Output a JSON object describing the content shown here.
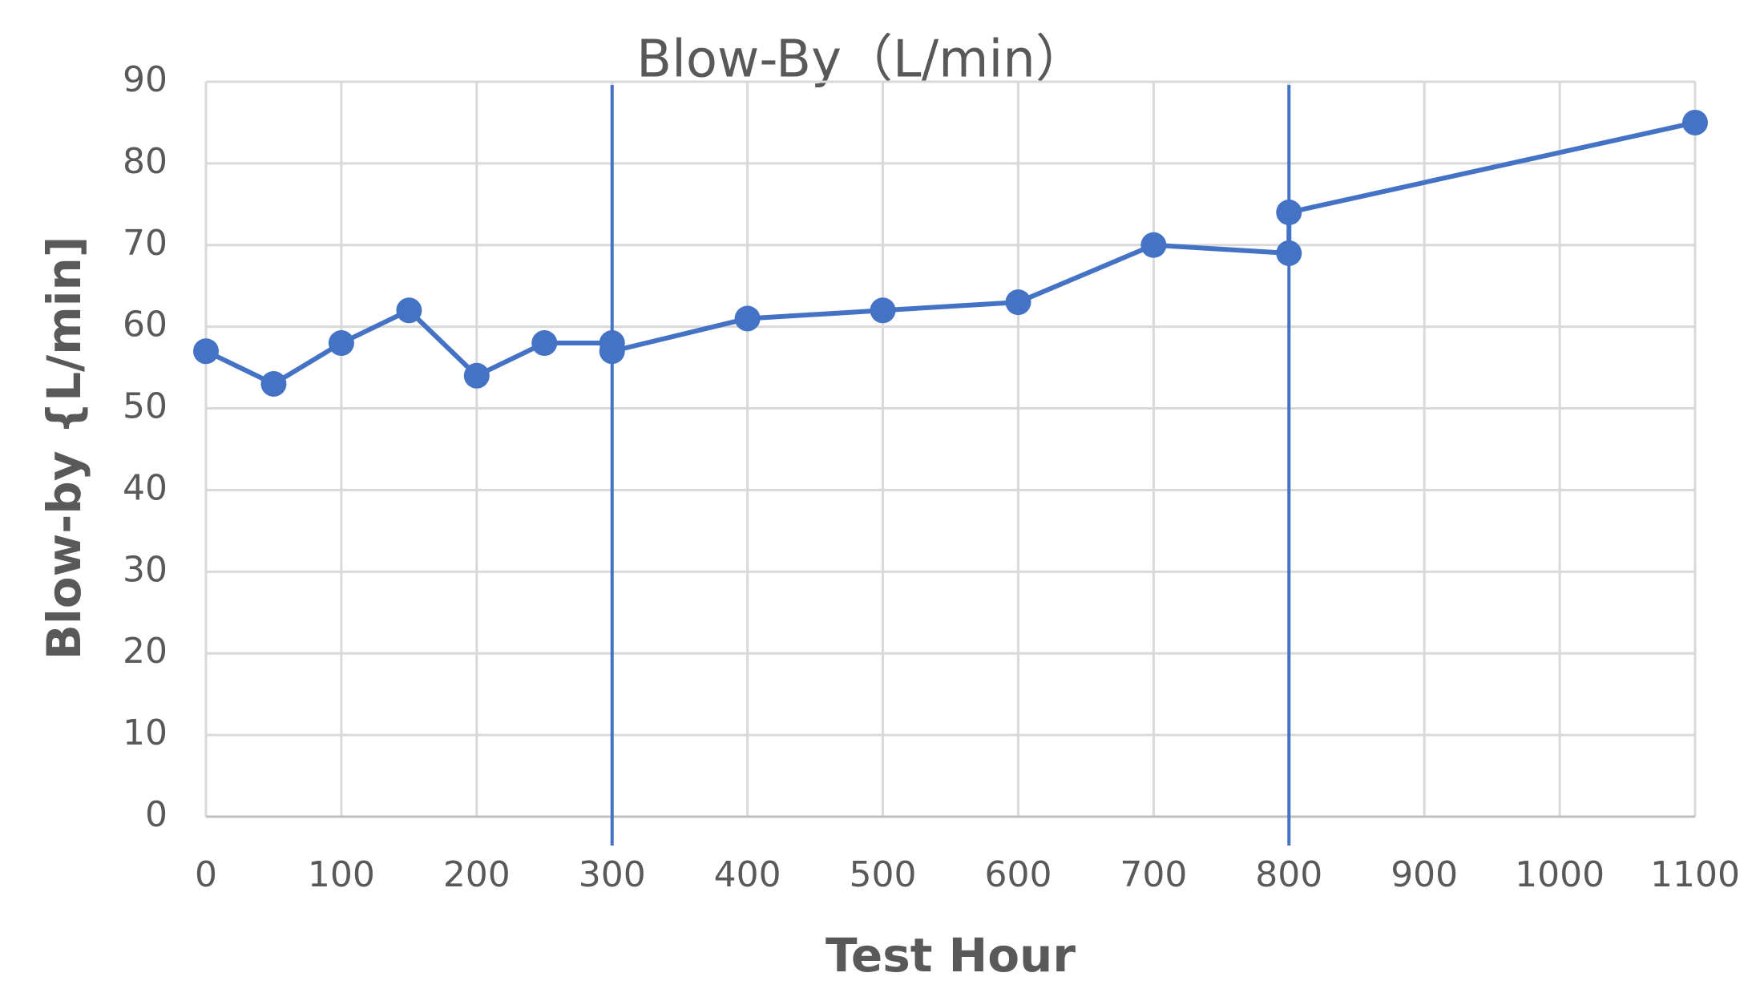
{
  "chart_data": {
    "type": "line",
    "title": "Blow-By（L/min）",
    "xlabel": "Test Hour",
    "ylabel": "Blow-by {L/min]",
    "x": [
      0,
      50,
      100,
      150,
      200,
      250,
      300,
      300,
      400,
      500,
      600,
      700,
      800,
      800,
      1100
    ],
    "series": [
      {
        "color": "#4472c4",
        "values": [
          57,
          53,
          58,
          62,
          54,
          58,
          58,
          57,
          61,
          62,
          63,
          70,
          69,
          74,
          85
        ]
      }
    ],
    "vlines": [
      300,
      800
    ],
    "xlim": [
      0,
      1100
    ],
    "xticks": [
      0,
      100,
      200,
      300,
      400,
      500,
      600,
      700,
      800,
      900,
      1000,
      1100
    ],
    "ylim": [
      0,
      90
    ],
    "yticks": [
      0,
      10,
      20,
      30,
      40,
      50,
      60,
      70,
      80,
      90
    ],
    "grid": true
  }
}
